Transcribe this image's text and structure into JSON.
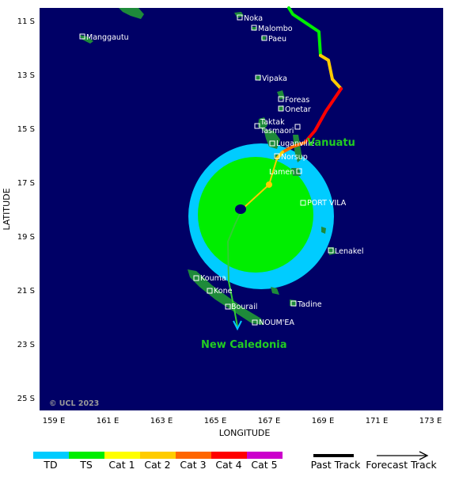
{
  "axes": {
    "x_title": "LONGITUDE",
    "y_title": "LATITUDE",
    "x_ticks": [
      "159 E",
      "161 E",
      "163 E",
      "165 E",
      "167 E",
      "169 E",
      "171 E",
      "173 E"
    ],
    "y_ticks": [
      "11 S",
      "13 S",
      "15 S",
      "17 S",
      "19 S",
      "21 S",
      "23 S",
      "25 S"
    ]
  },
  "copyright": "© UCL 2023",
  "regions": {
    "vanuatu": "Vanuatu",
    "new_caledonia": "New Caledonia"
  },
  "places": [
    {
      "name": "Noka"
    },
    {
      "name": "Malombo"
    },
    {
      "name": "Manggautu"
    },
    {
      "name": "Paeu"
    },
    {
      "name": "Vipaka"
    },
    {
      "name": "Foreas"
    },
    {
      "name": "Onetar"
    },
    {
      "name": "Taktak"
    },
    {
      "name": "Tasmaori"
    },
    {
      "name": "Luganville"
    },
    {
      "name": "Norsup"
    },
    {
      "name": "Lamen"
    },
    {
      "name": "PORT VILA"
    },
    {
      "name": "Lenakel"
    },
    {
      "name": "Kouma"
    },
    {
      "name": "Kone"
    },
    {
      "name": "Bourail"
    },
    {
      "name": "Tadine"
    },
    {
      "name": "NOUM'EA"
    }
  ],
  "legend": {
    "categories": [
      {
        "label": "TD",
        "color": "#00ccff"
      },
      {
        "label": "TS",
        "color": "#00ee00"
      },
      {
        "label": "Cat 1",
        "color": "#ffff00"
      },
      {
        "label": "Cat 2",
        "color": "#ffcc00"
      },
      {
        "label": "Cat 3",
        "color": "#ff6600"
      },
      {
        "label": "Cat 4",
        "color": "#ff0000"
      },
      {
        "label": "Cat 5",
        "color": "#cc00cc"
      }
    ],
    "past_track": "Past Track",
    "forecast_track": "Forecast Track"
  },
  "colors": {
    "ocean": "#000066",
    "land": "#1e8a3a",
    "wind_td": "#00ccff",
    "wind_ts": "#00ee00",
    "forecast_track": "#32cd32"
  }
}
